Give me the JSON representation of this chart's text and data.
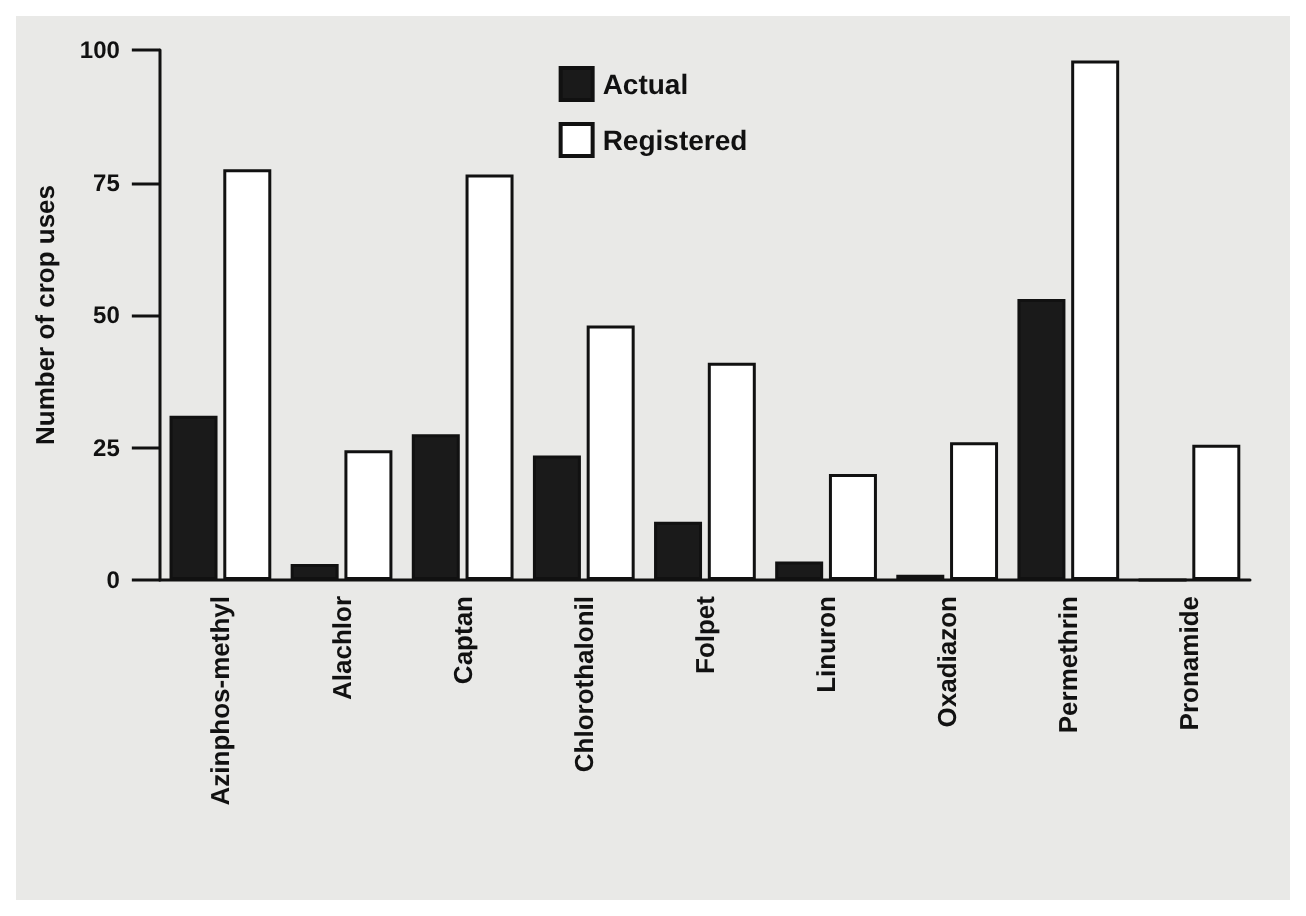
{
  "chart_data": {
    "type": "bar",
    "ylabel": "Number of crop uses",
    "categories": [
      "Azinphos-methyl",
      "Alachlor",
      "Captan",
      "Chlorothalonil",
      "Folpet",
      "Linuron",
      "Oxadiazon",
      "Permethrin",
      "Pronamide"
    ],
    "series": [
      {
        "name": "Actual",
        "color": "#1a1a1a",
        "values": [
          31,
          3,
          27.5,
          23.5,
          11,
          3.5,
          1,
          53,
          0
        ]
      },
      {
        "name": "Registered",
        "color": "#ffffff",
        "values": [
          77.5,
          24.5,
          76.5,
          48,
          41,
          20,
          26,
          98,
          25.5
        ]
      }
    ],
    "ylim": [
      0,
      100
    ],
    "yticks": [
      0,
      25,
      50,
      75,
      100
    ],
    "grid": false,
    "legend": "top"
  }
}
